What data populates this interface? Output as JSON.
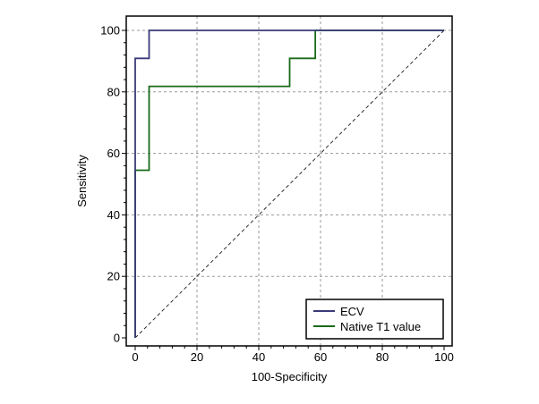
{
  "chart_data": {
    "type": "line",
    "xlabel": "100-Specificity",
    "ylabel": "Sensitivity",
    "xlim": [
      0,
      100
    ],
    "ylim": [
      0,
      100
    ],
    "xticks": [
      0,
      20,
      40,
      60,
      80,
      100
    ],
    "yticks": [
      0,
      20,
      40,
      60,
      80,
      100
    ],
    "grid": true,
    "legend_position": "bottom-right",
    "reference_line": {
      "x": [
        0,
        100
      ],
      "y": [
        0,
        100
      ],
      "style": "dashed"
    },
    "series": [
      {
        "name": "ECV",
        "color": "#3a3a7a",
        "x": [
          0,
          0,
          4.5,
          4.5,
          100
        ],
        "y": [
          0,
          90.9,
          90.9,
          100,
          100
        ]
      },
      {
        "name": "Native T1 value",
        "color": "#1a6a1a",
        "x": [
          0,
          0,
          4.5,
          4.5,
          50,
          50,
          58.3,
          58.3,
          100
        ],
        "y": [
          0,
          54.5,
          54.5,
          81.8,
          81.8,
          90.9,
          90.9,
          100,
          100
        ]
      }
    ]
  }
}
